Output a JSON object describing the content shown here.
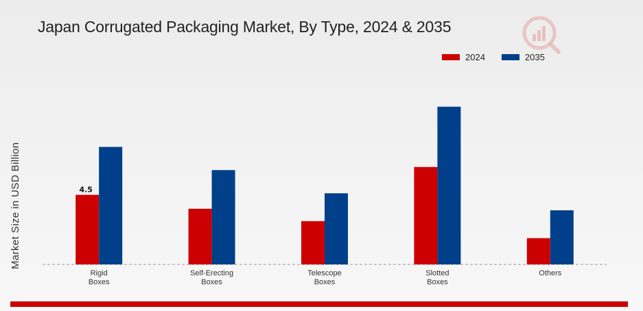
{
  "colors": {
    "series_2024": "#cc0000",
    "series_2035": "#003f8a",
    "accent_bar": "#cc0000"
  },
  "chart_data": {
    "type": "bar",
    "title": "Japan Corrugated Packaging Market, By Type, 2024 & 2035",
    "xlabel": "",
    "ylabel": "Market Size in USD Billion",
    "categories": [
      "Rigid\nBoxes",
      "Self-Erecting\nBoxes",
      "Telescope\nBoxes",
      "Slotted\nBoxes",
      "Others"
    ],
    "series": [
      {
        "name": "2024",
        "color": "#cc0000",
        "values": [
          4.5,
          3.6,
          2.8,
          6.3,
          1.7
        ]
      },
      {
        "name": "2035",
        "color": "#003f8a",
        "values": [
          7.6,
          6.1,
          4.6,
          10.2,
          3.5
        ]
      }
    ],
    "data_labels": [
      {
        "series": 0,
        "index": 0,
        "text": "4.5"
      }
    ],
    "ylim": [
      0,
      14
    ],
    "grid": false,
    "baseline_dashed": true,
    "legend_position": "top-right"
  },
  "logo": {
    "icon": "market-research-logo-icon"
  }
}
